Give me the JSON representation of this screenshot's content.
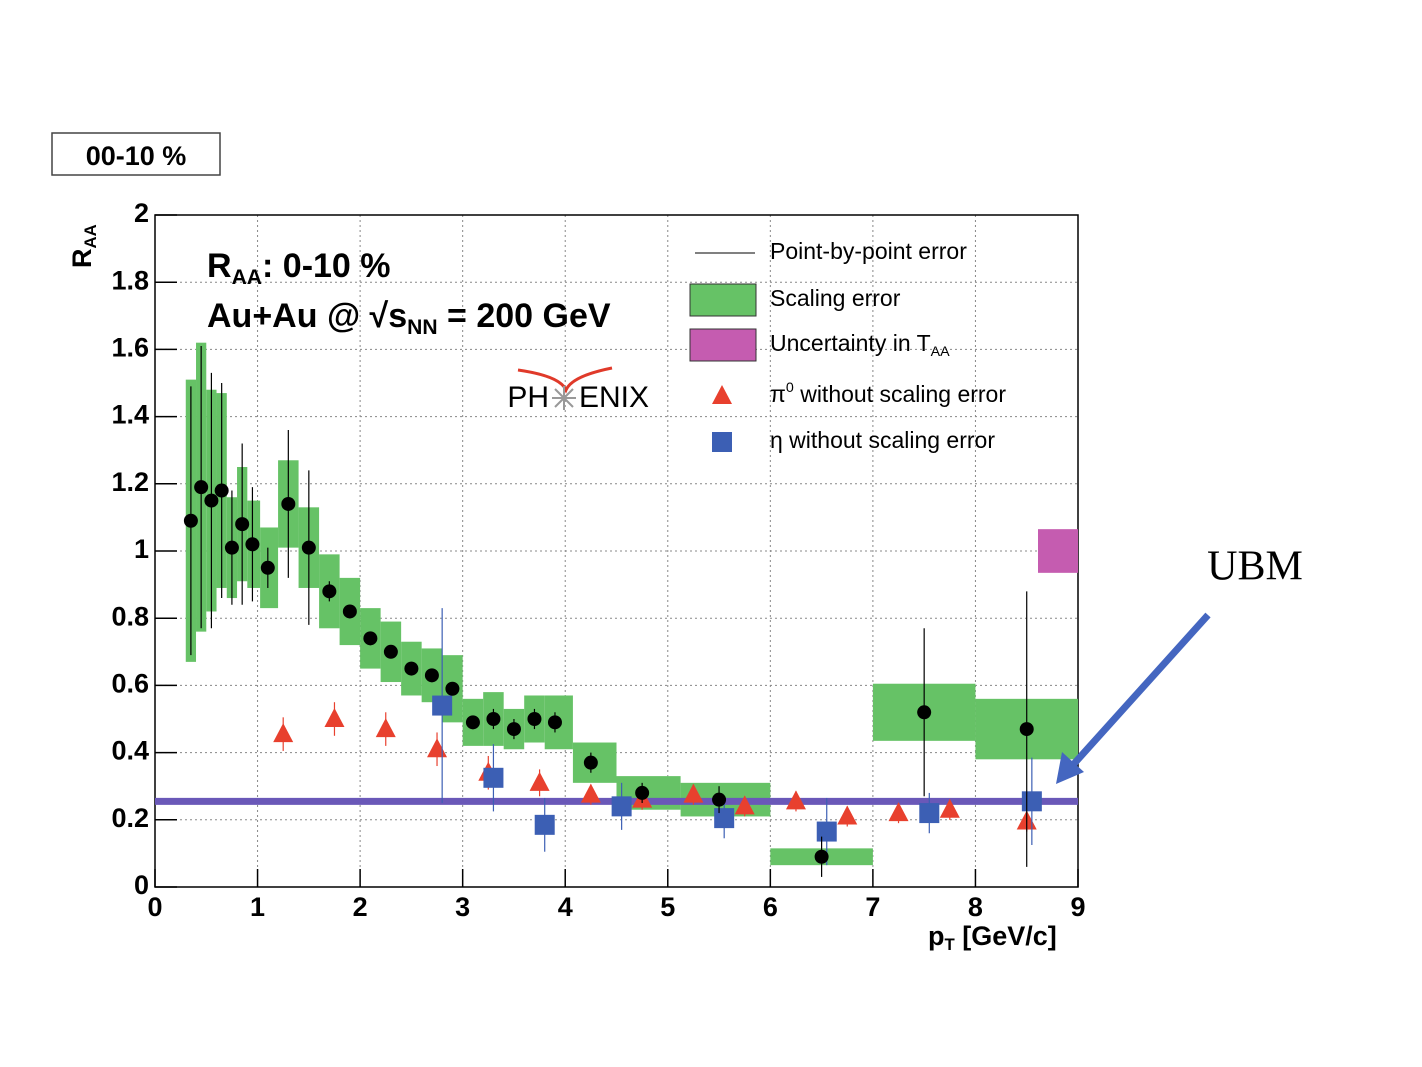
{
  "chart_data": {
    "type": "scatter",
    "panel_label": "00-10 %",
    "annotations": [
      [
        {
          "text": "R"
        },
        {
          "text": "AA",
          "sub": true
        },
        {
          "text": ": 0-10 %"
        }
      ],
      [
        {
          "text": "Au+Au @ √s"
        },
        {
          "text": "NN",
          "sub": true
        },
        {
          "text": " = 200 GeV"
        }
      ]
    ],
    "logo": [
      "PH",
      "ENIX"
    ],
    "x_label": [
      {
        "text": "p"
      },
      {
        "text": "T",
        "sub": true
      },
      {
        "text": " [GeV/c]"
      }
    ],
    "y_label": [
      {
        "text": "R"
      },
      {
        "text": "AA",
        "sub": true
      }
    ],
    "xlim": [
      0,
      9
    ],
    "ylim": [
      0,
      2
    ],
    "xticks": [
      0,
      1,
      2,
      3,
      4,
      5,
      6,
      7,
      8,
      9
    ],
    "yticks": [
      0,
      0.2,
      0.4,
      0.6,
      0.8,
      1,
      1.2,
      1.4,
      1.6,
      1.8,
      2
    ],
    "grid": true,
    "measurement": {
      "color": "#000000",
      "band_color": "#66c266",
      "x": [
        0.35,
        0.45,
        0.55,
        0.65,
        0.75,
        0.85,
        0.95,
        1.1,
        1.3,
        1.5,
        1.7,
        1.9,
        2.1,
        2.3,
        2.5,
        2.7,
        2.9,
        3.1,
        3.3,
        3.5,
        3.7,
        3.9,
        4.25,
        4.75,
        5.5,
        6.5,
        7.5,
        8.5
      ],
      "values": [
        1.09,
        1.19,
        1.15,
        1.18,
        1.01,
        1.08,
        1.02,
        0.95,
        1.14,
        1.01,
        0.88,
        0.82,
        0.74,
        0.7,
        0.65,
        0.63,
        0.59,
        0.49,
        0.5,
        0.47,
        0.5,
        0.49,
        0.37,
        0.28,
        0.26,
        0.09,
        0.52,
        0.47
      ],
      "errors": [
        0.4,
        0.42,
        0.38,
        0.32,
        0.17,
        0.24,
        0.17,
        0.06,
        0.22,
        0.23,
        0.03,
        0.02,
        0.02,
        0.02,
        0.02,
        0.02,
        0.02,
        0.02,
        0.03,
        0.03,
        0.03,
        0.03,
        0.03,
        0.03,
        0.04,
        0.06,
        0.25,
        0.41
      ],
      "scale_errors": [
        0.42,
        0.43,
        0.33,
        0.29,
        0.15,
        0.17,
        0.13,
        0.12,
        0.13,
        0.12,
        0.11,
        0.1,
        0.09,
        0.09,
        0.08,
        0.08,
        0.1,
        0.07,
        0.08,
        0.06,
        0.07,
        0.08,
        0.06,
        0.05,
        0.05,
        0.025,
        0.085,
        0.09
      ]
    },
    "series": [
      {
        "name": [
          {
            "text": "π"
          },
          {
            "text": "0",
            "sup": true
          },
          {
            "text": " without scaling error"
          }
        ],
        "marker": "triangle",
        "color": "#e8402e",
        "x": [
          1.25,
          1.75,
          2.25,
          2.75,
          3.25,
          3.75,
          4.25,
          4.75,
          5.25,
          5.75,
          6.25,
          6.75,
          7.25,
          7.75,
          8.5
        ],
        "values": [
          0.455,
          0.5,
          0.47,
          0.41,
          0.34,
          0.31,
          0.275,
          0.26,
          0.275,
          0.24,
          0.255,
          0.21,
          0.22,
          0.23,
          0.195
        ],
        "errors": [
          0.05,
          0.05,
          0.05,
          0.05,
          0.05,
          0.04,
          0.03,
          0.03,
          0.03,
          0.03,
          0.03,
          0.03,
          0.03,
          0.03,
          0.03
        ]
      },
      {
        "name": [
          {
            "text": "η without scaling error"
          }
        ],
        "marker": "square",
        "color": "#3c5fb4",
        "x": [
          2.8,
          3.3,
          3.8,
          4.55,
          5.55,
          6.55,
          7.55,
          8.55
        ],
        "values": [
          0.54,
          0.325,
          0.185,
          0.24,
          0.205,
          0.165,
          0.22,
          0.255
        ],
        "errors": [
          0.29,
          0.1,
          0.08,
          0.07,
          0.06,
          0.1,
          0.06,
          0.13
        ]
      }
    ],
    "taa": {
      "value": 1,
      "error": 0.065,
      "color": "#c55cb0"
    },
    "legend": [
      {
        "label": [
          {
            "text": "Point-by-point error"
          }
        ],
        "symbol": "line"
      },
      {
        "label": [
          {
            "text": "Scaling error"
          }
        ],
        "symbol": "band"
      },
      {
        "label": [
          {
            "text": "Uncertainty in T"
          },
          {
            "text": "AA",
            "sub": true
          }
        ],
        "symbol": "taa"
      }
    ],
    "ubm": {
      "label": "UBM",
      "value": 0.255,
      "color": "#6a58b8"
    }
  }
}
